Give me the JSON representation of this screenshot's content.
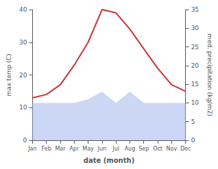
{
  "chart_data": {
    "type": "line",
    "xlabel": "date (month)",
    "ylabel": "max temp (C)",
    "y2label": "med. precipitation (kg/m2)",
    "categories": [
      "Jan",
      "Feb",
      "Mar",
      "Apr",
      "May",
      "Jun",
      "Jul",
      "Aug",
      "Sep",
      "Oct",
      "Nov",
      "Dec"
    ],
    "series": [
      {
        "type": "area",
        "axis": "y2",
        "color": "#aabbee",
        "values": [
          10,
          10,
          10,
          10,
          11,
          13,
          10,
          13,
          10,
          10,
          10,
          10
        ]
      },
      {
        "type": "line",
        "axis": "y",
        "color": "#cc3333",
        "values": [
          13,
          14,
          17,
          23,
          30,
          40,
          39,
          34,
          28,
          22,
          17,
          15
        ]
      }
    ],
    "ylim": [
      0,
      40
    ],
    "yticks": [
      0,
      10,
      20,
      30,
      40
    ],
    "y2lim": [
      0,
      35
    ],
    "y2ticks": [
      0,
      5,
      10,
      15,
      20,
      25,
      30,
      35
    ],
    "grid": false
  }
}
